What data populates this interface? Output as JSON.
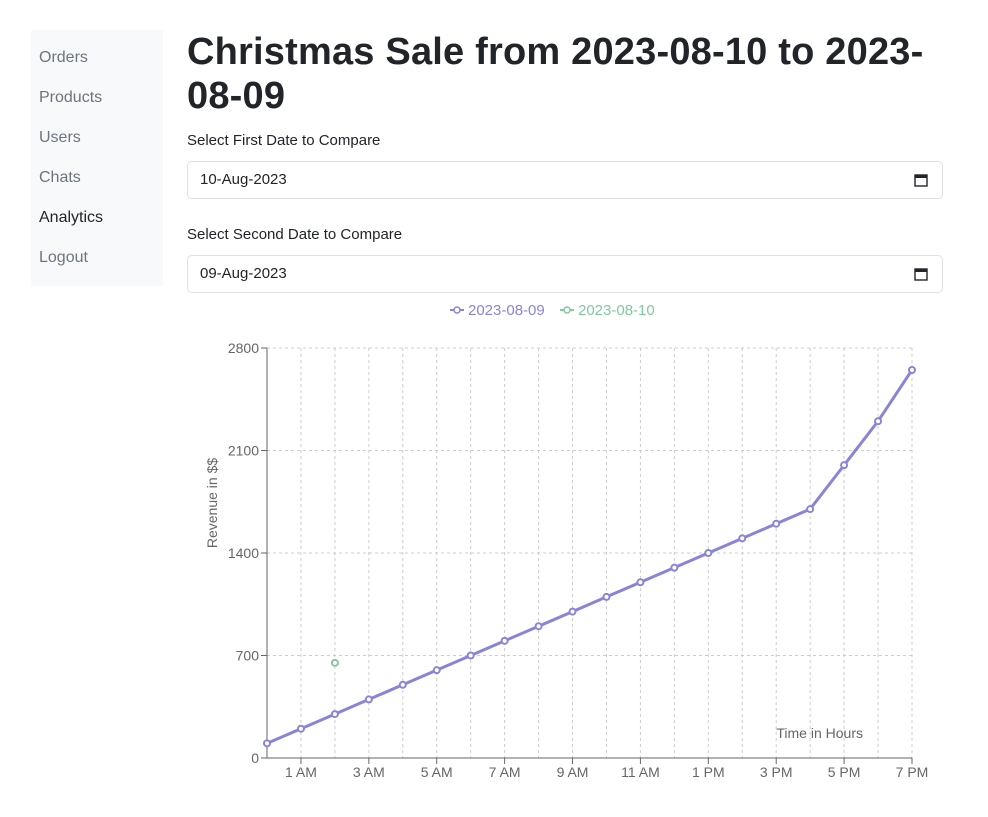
{
  "sidebar": {
    "items": [
      {
        "label": "Orders"
      },
      {
        "label": "Products"
      },
      {
        "label": "Users"
      },
      {
        "label": "Chats"
      },
      {
        "label": "Analytics"
      },
      {
        "label": "Logout"
      }
    ],
    "active": "Analytics"
  },
  "main": {
    "title": "Christmas Sale from 2023-08-10 to 2023-08-09",
    "first_date": {
      "label": "Select First Date to Compare",
      "value": "10-Aug-2023",
      "icon": "calendar-icon"
    },
    "second_date": {
      "label": "Select Second Date to Compare",
      "value": "09-Aug-2023",
      "icon": "calendar-icon"
    }
  },
  "colors": {
    "series1": "#8884d8",
    "series2": "#82ca9d",
    "grid": "#cccccc",
    "axis": "#666666"
  },
  "chart_data": {
    "type": "line",
    "xlabel": "Time in Hours",
    "ylabel": "Revenue in $$",
    "ylim": [
      0,
      2800
    ],
    "yticks": [
      0,
      700,
      1400,
      2100,
      2800
    ],
    "xticks": [
      "1 AM",
      "3 AM",
      "5 AM",
      "7 AM",
      "9 AM",
      "11 AM",
      "1 PM",
      "3 PM",
      "5 PM",
      "7 PM"
    ],
    "x": [
      "12 AM",
      "1 AM",
      "2 AM",
      "3 AM",
      "4 AM",
      "5 AM",
      "6 AM",
      "7 AM",
      "8 AM",
      "9 AM",
      "10 AM",
      "11 AM",
      "12 PM",
      "1 PM",
      "2 PM",
      "3 PM",
      "4 PM",
      "5 PM",
      "6 PM",
      "7 PM"
    ],
    "grid": true,
    "legend": "top-center",
    "series": [
      {
        "name": "2023-08-09",
        "values": [
          100,
          200,
          300,
          400,
          500,
          600,
          700,
          800,
          900,
          1000,
          1100,
          1200,
          1300,
          1400,
          1500,
          1600,
          1700,
          2000,
          2300,
          2650
        ]
      },
      {
        "name": "2023-08-10",
        "values": [
          null,
          null,
          650,
          null,
          null,
          null,
          null,
          null,
          null,
          null,
          null,
          null,
          null,
          null,
          null,
          null,
          null,
          null,
          null,
          null
        ]
      }
    ]
  }
}
